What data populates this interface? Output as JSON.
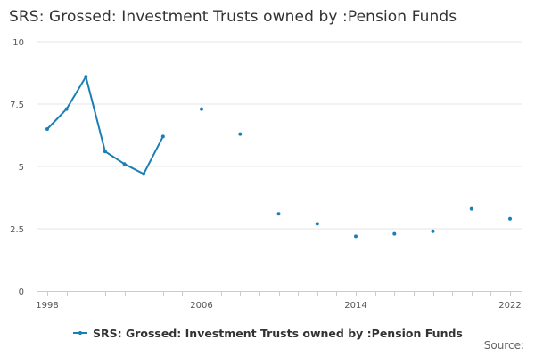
{
  "title": "SRS: Grossed: Investment Trusts owned by :Pension Funds",
  "source_label": "Source:",
  "colors": {
    "series": "#1a7fb5",
    "grid": "#e6e6e6",
    "axis": "#cccccc"
  },
  "chart_data": {
    "type": "line",
    "title": "SRS: Grossed: Investment Trusts owned by :Pension Funds",
    "xlabel": "",
    "ylabel": "",
    "xlim": [
      1998,
      2022
    ],
    "ylim": [
      0,
      10
    ],
    "x_ticks": [
      1998,
      2006,
      2014,
      2022
    ],
    "y_ticks": [
      0,
      2.5,
      5,
      7.5,
      10
    ],
    "y_tick_labels": [
      "0",
      "2.5",
      "5",
      "7.5",
      "10"
    ],
    "grid": true,
    "legend_position": "bottom",
    "series": [
      {
        "name": "SRS: Grossed: Investment Trusts owned by :Pension Funds",
        "points": [
          {
            "x": 1998,
            "y": 6.5
          },
          {
            "x": 1999,
            "y": 7.3
          },
          {
            "x": 2000,
            "y": 8.6
          },
          {
            "x": 2001,
            "y": 5.6
          },
          {
            "x": 2002,
            "y": 5.1
          },
          {
            "x": 2003,
            "y": 4.7
          },
          {
            "x": 2004,
            "y": 6.2
          },
          {
            "x": 2005,
            "y": null
          },
          {
            "x": 2006,
            "y": 7.3
          },
          {
            "x": 2007,
            "y": null
          },
          {
            "x": 2008,
            "y": 6.3
          },
          {
            "x": 2009,
            "y": null
          },
          {
            "x": 2010,
            "y": 3.1
          },
          {
            "x": 2011,
            "y": null
          },
          {
            "x": 2012,
            "y": 2.7
          },
          {
            "x": 2013,
            "y": null
          },
          {
            "x": 2014,
            "y": 2.2
          },
          {
            "x": 2015,
            "y": null
          },
          {
            "x": 2016,
            "y": 2.3
          },
          {
            "x": 2017,
            "y": null
          },
          {
            "x": 2018,
            "y": 2.4
          },
          {
            "x": 2019,
            "y": null
          },
          {
            "x": 2020,
            "y": 3.3
          },
          {
            "x": 2021,
            "y": null
          },
          {
            "x": 2022,
            "y": 2.9
          }
        ]
      }
    ]
  }
}
